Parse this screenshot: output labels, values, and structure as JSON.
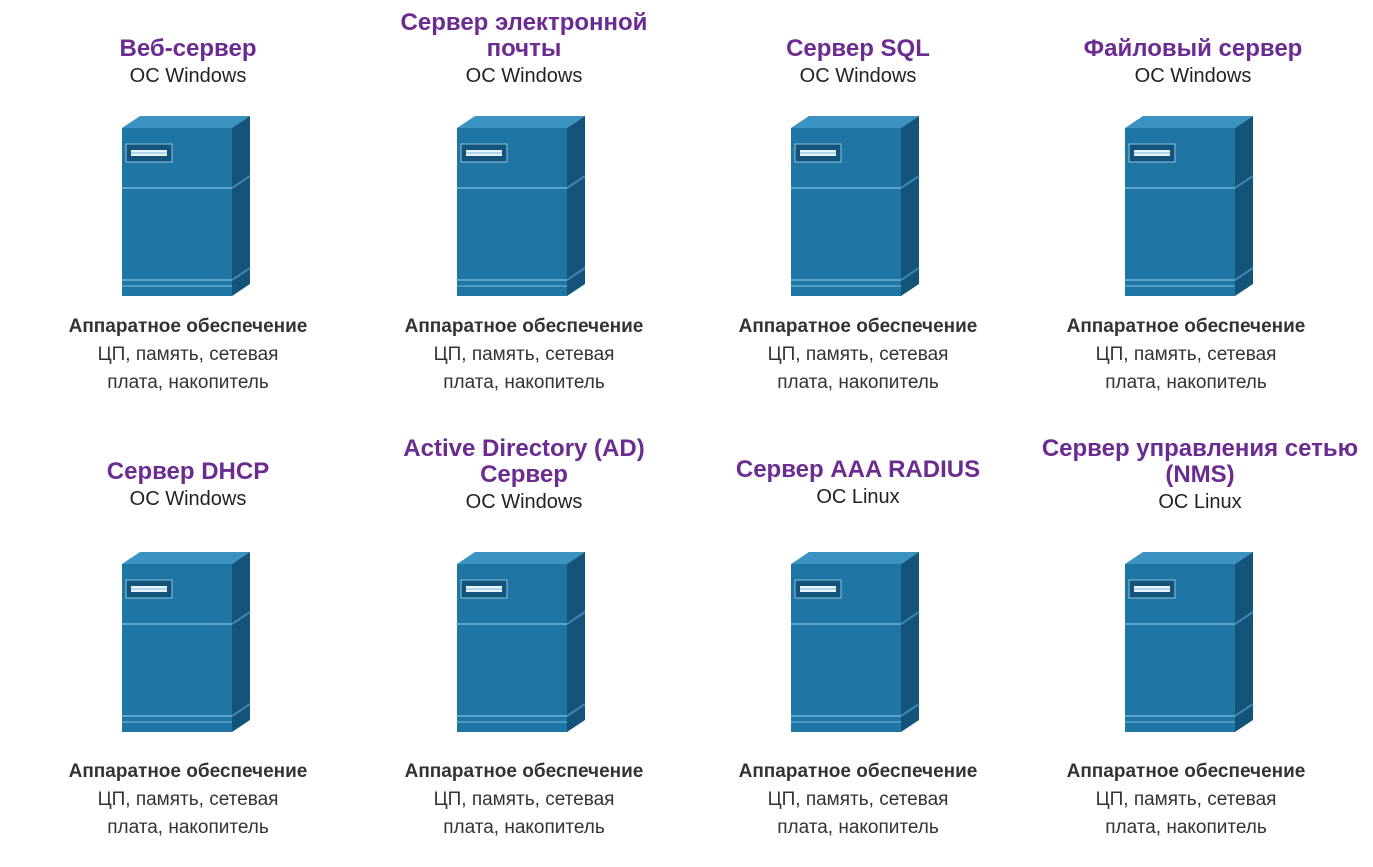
{
  "hardware_title": "Аппаратное обеспечение",
  "hardware_desc": "ЦП, память, сетевая\nплата, накопитель",
  "servers": [
    {
      "title": "Веб-сервер",
      "os": "ОС Windows"
    },
    {
      "title": "Сервер электронной\nпочты",
      "os": "ОС Windows"
    },
    {
      "title": "Сервер SQL",
      "os": "ОС Windows"
    },
    {
      "title": "Файловый сервер",
      "os": "ОС Windows"
    },
    {
      "title": "Сервер DHCP",
      "os": "ОС Windows"
    },
    {
      "title": "Active Directory (AD)\nСервер",
      "os": "ОС Windows"
    },
    {
      "title": "Сервер AAA RADIUS",
      "os": "ОС Linux"
    },
    {
      "title": "Сервер управления сетью\n(NMS)",
      "os": "ОС Linux"
    }
  ],
  "colors": {
    "title": "#6b2c91",
    "server_front": "#1f76a4",
    "server_side": "#14537a",
    "server_top": "#3b93c1"
  }
}
